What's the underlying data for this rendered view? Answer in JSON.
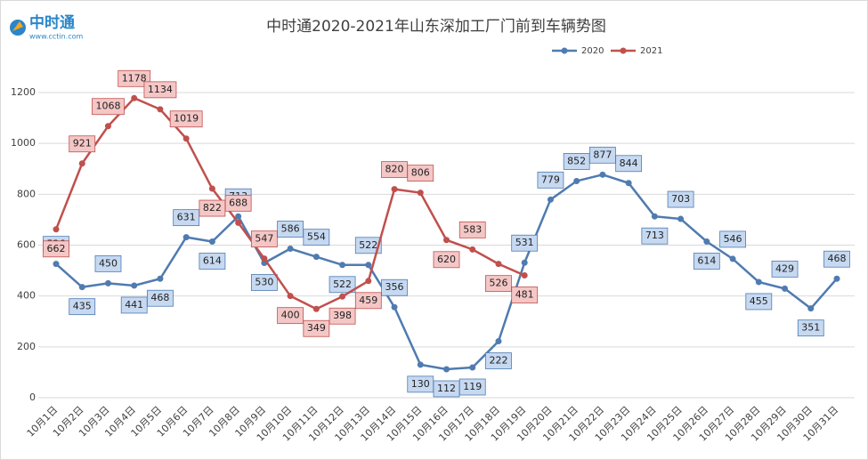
{
  "logo": {
    "name": "中时通",
    "url": "www.cctin.com"
  },
  "chart_data": {
    "type": "line",
    "title": "中时通2020-2021年山东深加工厂门前到车辆势图",
    "categories": [
      "10月1日",
      "10月2日",
      "10月3日",
      "10月4日",
      "10月5日",
      "10月6日",
      "10月7日",
      "10月8日",
      "10月9日",
      "10月10日",
      "10月11日",
      "10月12日",
      "10月13日",
      "10月14日",
      "10月15日",
      "10月16日",
      "10月17日",
      "10月18日",
      "10月19日",
      "10月20日",
      "10月21日",
      "10月22日",
      "10月23日",
      "10月24日",
      "10月25日",
      "10月26日",
      "10月27日",
      "10月28日",
      "10月29日",
      "10月30日",
      "10月31日"
    ],
    "series": [
      {
        "name": "2020",
        "color": "#4f7bb0",
        "label_fill": "#c6d9f1",
        "values": [
          526,
          435,
          450,
          441,
          468,
          631,
          614,
          713,
          530,
          586,
          554,
          522,
          522,
          356,
          130,
          112,
          119,
          222,
          531,
          779,
          852,
          877,
          844,
          713,
          703,
          614,
          546,
          455,
          429,
          351,
          468
        ]
      },
      {
        "name": "2021",
        "color": "#c0504d",
        "label_fill": "#f4c7c6",
        "values": [
          662,
          921,
          1068,
          1178,
          1134,
          1019,
          822,
          688,
          547,
          400,
          349,
          398,
          459,
          820,
          806,
          620,
          583,
          526,
          481,
          null,
          null,
          null,
          null,
          null,
          null,
          null,
          null,
          null,
          null,
          null,
          null
        ]
      }
    ],
    "ylim": [
      0,
      1200
    ],
    "yticks": [
      0,
      200,
      400,
      600,
      800,
      1000,
      1200
    ],
    "grid": true,
    "legend": "top-right"
  }
}
